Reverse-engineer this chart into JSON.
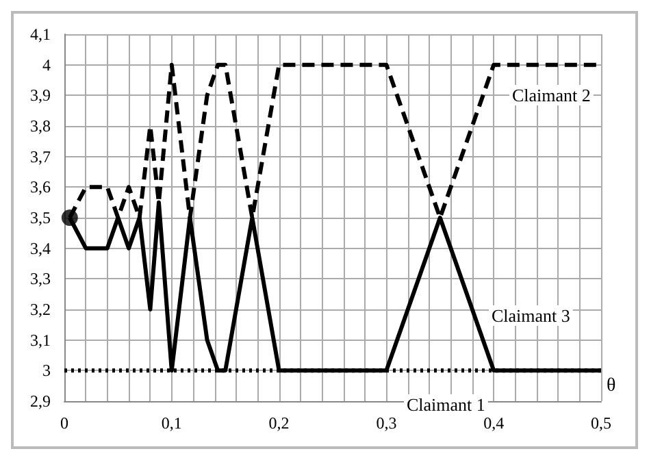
{
  "chart_data": {
    "type": "line",
    "xlabel": "θ",
    "series": [
      {
        "color": "#000000",
        "line_style": "dotted",
        "x": [
          0,
          0.5
        ],
        "values": [
          3,
          3
        ]
      },
      {
        "color": "#000000",
        "line_style": "dashed",
        "x": [
          0.005,
          0.02,
          0.04,
          0.05,
          0.06,
          0.07,
          0.08,
          0.088,
          0.1,
          0.117,
          0.133,
          0.143,
          0.15,
          0.175,
          0.2,
          0.3,
          0.35,
          0.4,
          0.5
        ],
        "values": [
          3.5,
          3.6,
          3.6,
          3.5,
          3.6,
          3.5,
          3.8,
          3.55,
          4.0,
          3.5,
          3.9,
          4.0,
          4.0,
          3.5,
          4.0,
          4.0,
          3.5,
          4.0,
          4.0
        ]
      },
      {
        "color": "#000000",
        "line_style": "solid",
        "x": [
          0.005,
          0.02,
          0.04,
          0.05,
          0.06,
          0.07,
          0.08,
          0.088,
          0.1,
          0.117,
          0.133,
          0.143,
          0.15,
          0.175,
          0.2,
          0.3,
          0.35,
          0.4,
          0.5
        ],
        "values": [
          3.5,
          3.4,
          3.4,
          3.5,
          3.4,
          3.5,
          3.2,
          3.55,
          3.0,
          3.5,
          3.1,
          3.0,
          3.0,
          3.5,
          3.0,
          3.0,
          3.5,
          3.0,
          3.0
        ]
      },
      {
        "type": "scatter",
        "marker": "circle",
        "color": "#000000",
        "x": [
          0.005
        ],
        "values": [
          3.5
        ]
      }
    ],
    "annotations": [
      "Claimant 2",
      "Claimant 3",
      "Claimant 1"
    ],
    "xlim": [
      0,
      0.5
    ],
    "xticks": [
      {
        "value": 0,
        "label": "0"
      },
      {
        "value": 0.02,
        "label": null
      },
      {
        "value": 0.04,
        "label": null
      },
      {
        "value": 0.06,
        "label": null
      },
      {
        "value": 0.08,
        "label": null
      },
      {
        "value": 0.1,
        "label": "0,1"
      },
      {
        "value": 0.12,
        "label": null
      },
      {
        "value": 0.14,
        "label": null
      },
      {
        "value": 0.16,
        "label": null
      },
      {
        "value": 0.18,
        "label": null
      },
      {
        "value": 0.2,
        "label": "0,2"
      },
      {
        "value": 0.22,
        "label": null
      },
      {
        "value": 0.24,
        "label": null
      },
      {
        "value": 0.26,
        "label": null
      },
      {
        "value": 0.28,
        "label": null
      },
      {
        "value": 0.3,
        "label": "0,3"
      },
      {
        "value": 0.32,
        "label": null
      },
      {
        "value": 0.34,
        "label": null
      },
      {
        "value": 0.36,
        "label": null
      },
      {
        "value": 0.38,
        "label": null
      },
      {
        "value": 0.4,
        "label": "0,4"
      },
      {
        "value": 0.42,
        "label": null
      },
      {
        "value": 0.44,
        "label": null
      },
      {
        "value": 0.46,
        "label": null
      },
      {
        "value": 0.48,
        "label": null
      },
      {
        "value": 0.5,
        "label": "0,5"
      }
    ],
    "ylim": [
      2.9,
      4.1
    ],
    "yticks": [
      {
        "value": 2.9,
        "label": "2,9"
      },
      {
        "value": 3,
        "label": "3"
      },
      {
        "value": 3.1,
        "label": "3,1"
      },
      {
        "value": 3.2,
        "label": "3,2"
      },
      {
        "value": 3.3,
        "label": "3,3"
      },
      {
        "value": 3.4,
        "label": "3,4"
      },
      {
        "value": 3.5,
        "label": "3,5"
      },
      {
        "value": 3.6,
        "label": "3,6"
      },
      {
        "value": 3.7,
        "label": "3,7"
      },
      {
        "value": 3.8,
        "label": "3,8"
      },
      {
        "value": 3.9,
        "label": "3,9"
      },
      {
        "value": 4,
        "label": "4"
      },
      {
        "value": 4.1,
        "label": "4,1"
      }
    ],
    "grid": true
  }
}
